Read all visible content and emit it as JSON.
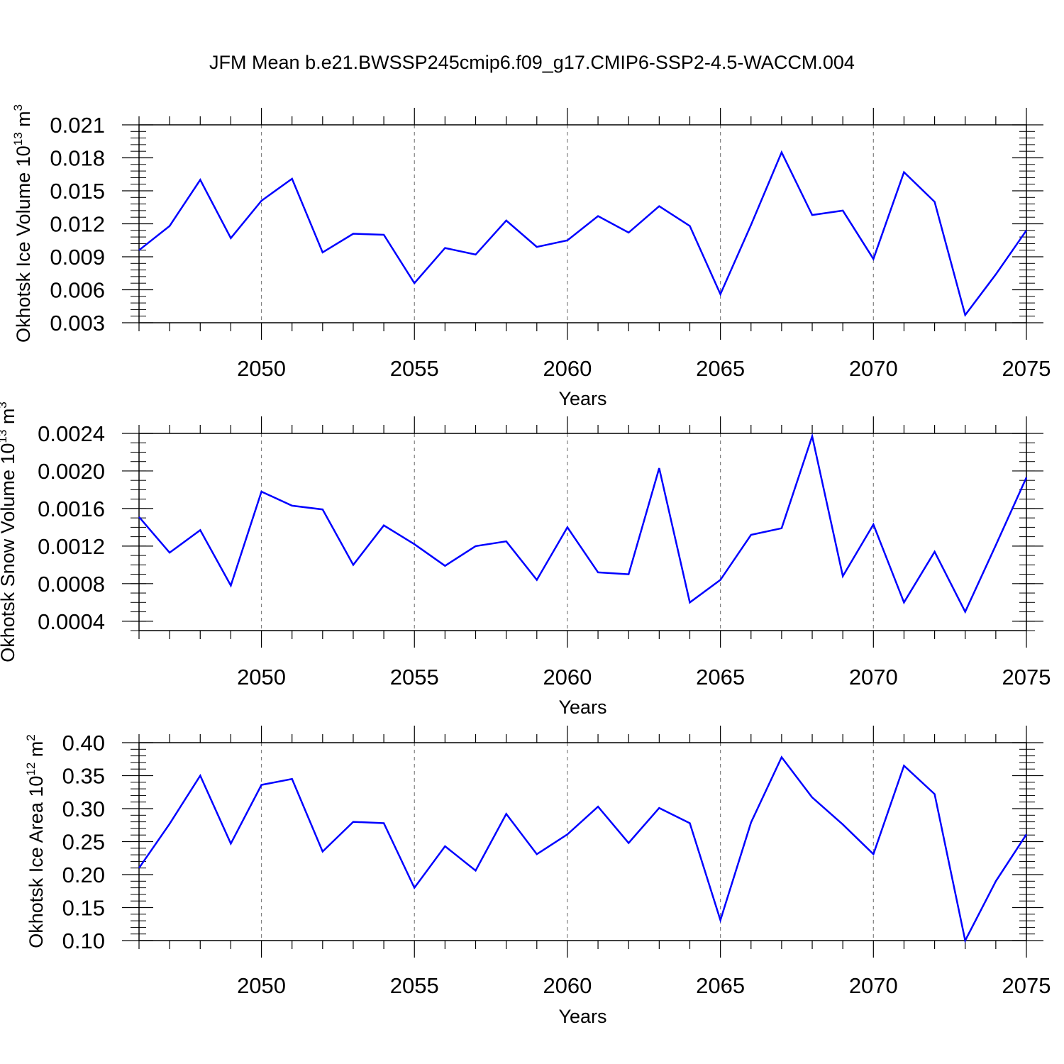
{
  "title": "JFM Mean b.e21.BWSSP245cmip6.f09_g17.CMIP6-SSP2-4.5-WACCM.004",
  "colors": {
    "line": "#0000ff",
    "axis": "#000000",
    "grid": "#808080"
  },
  "chart_data": [
    {
      "type": "line",
      "ylabel": {
        "main": "Okhotsk Ice Volume 10",
        "sup": "13",
        "tail": " m",
        "sup2": "3"
      },
      "xlabel": "Years",
      "xlim": [
        2046,
        2075
      ],
      "ylim": [
        0.003,
        0.021
      ],
      "yticks": [
        "0.003",
        "0.006",
        "0.009",
        "0.012",
        "0.015",
        "0.018",
        "0.021"
      ],
      "yminor": 0.0006,
      "xticks": [
        "2050",
        "2055",
        "2060",
        "2065",
        "2070",
        "2075"
      ],
      "grid_x": true,
      "series": [
        {
          "name": "Ice Volume",
          "x": [
            2046,
            2047,
            2048,
            2049,
            2050,
            2051,
            2052,
            2053,
            2054,
            2055,
            2056,
            2057,
            2058,
            2059,
            2060,
            2061,
            2062,
            2063,
            2064,
            2065,
            2066,
            2067,
            2068,
            2069,
            2070,
            2071,
            2072,
            2073,
            2074,
            2075
          ],
          "values": [
            0.0096,
            0.0118,
            0.016,
            0.0107,
            0.0141,
            0.0161,
            0.0094,
            0.0111,
            0.011,
            0.0066,
            0.0098,
            0.0092,
            0.0123,
            0.0099,
            0.0105,
            0.0127,
            0.0112,
            0.0136,
            0.0118,
            0.0056,
            0.0119,
            0.0185,
            0.0128,
            0.0132,
            0.0088,
            0.0167,
            0.014,
            0.0037,
            0.0074,
            0.0114
          ]
        }
      ]
    },
    {
      "type": "line",
      "ylabel": {
        "main": "Okhotsk Snow Volume 10",
        "sup": "13",
        "tail": " m",
        "sup2": "3"
      },
      "xlabel": "Years",
      "xlim": [
        2046,
        2075
      ],
      "ylim": [
        0.0003,
        0.0024
      ],
      "yticks": [
        "0.0004",
        "0.0008",
        "0.0012",
        "0.0016",
        "0.0020",
        "0.0024"
      ],
      "ytick_values": [
        0.0004,
        0.0008,
        0.0012,
        0.0016,
        0.002,
        0.0024
      ],
      "yminor": 0.0001,
      "xticks": [
        "2050",
        "2055",
        "2060",
        "2065",
        "2070",
        "2075"
      ],
      "grid_x": true,
      "series": [
        {
          "name": "Snow Volume",
          "x": [
            2046,
            2047,
            2048,
            2049,
            2050,
            2051,
            2052,
            2053,
            2054,
            2055,
            2056,
            2057,
            2058,
            2059,
            2060,
            2061,
            2062,
            2063,
            2064,
            2065,
            2066,
            2067,
            2068,
            2069,
            2070,
            2071,
            2072,
            2073,
            2074,
            2075
          ],
          "values": [
            0.00151,
            0.00113,
            0.00137,
            0.00078,
            0.00178,
            0.00163,
            0.00159,
            0.001,
            0.00142,
            0.00122,
            0.00099,
            0.0012,
            0.00125,
            0.00084,
            0.0014,
            0.00092,
            0.0009,
            0.00203,
            0.0006,
            0.00084,
            0.00132,
            0.00139,
            0.00237,
            0.00088,
            0.00143,
            0.0006,
            0.00114,
            0.0005,
            0.00121,
            0.00193
          ]
        }
      ]
    },
    {
      "type": "line",
      "ylabel": {
        "main": "Okhotsk Ice Area 10",
        "sup": "12",
        "tail": " m",
        "sup2": "2"
      },
      "xlabel": "Years",
      "xlim": [
        2046,
        2075
      ],
      "ylim": [
        0.1,
        0.4
      ],
      "yticks": [
        "0.10",
        "0.15",
        "0.20",
        "0.25",
        "0.30",
        "0.35",
        "0.40"
      ],
      "yminor": 0.01,
      "xticks": [
        "2050",
        "2055",
        "2060",
        "2065",
        "2070",
        "2075"
      ],
      "grid_x": true,
      "series": [
        {
          "name": "Ice Area",
          "x": [
            2046,
            2047,
            2048,
            2049,
            2050,
            2051,
            2052,
            2053,
            2054,
            2055,
            2056,
            2057,
            2058,
            2059,
            2060,
            2061,
            2062,
            2063,
            2064,
            2065,
            2066,
            2067,
            2068,
            2069,
            2070,
            2071,
            2072,
            2073,
            2074,
            2075
          ],
          "values": [
            0.21,
            0.277,
            0.35,
            0.247,
            0.336,
            0.345,
            0.235,
            0.28,
            0.278,
            0.18,
            0.243,
            0.206,
            0.292,
            0.231,
            0.261,
            0.303,
            0.248,
            0.301,
            0.278,
            0.131,
            0.279,
            0.378,
            0.317,
            0.276,
            0.231,
            0.365,
            0.322,
            0.1,
            0.19,
            0.261
          ]
        }
      ]
    }
  ]
}
